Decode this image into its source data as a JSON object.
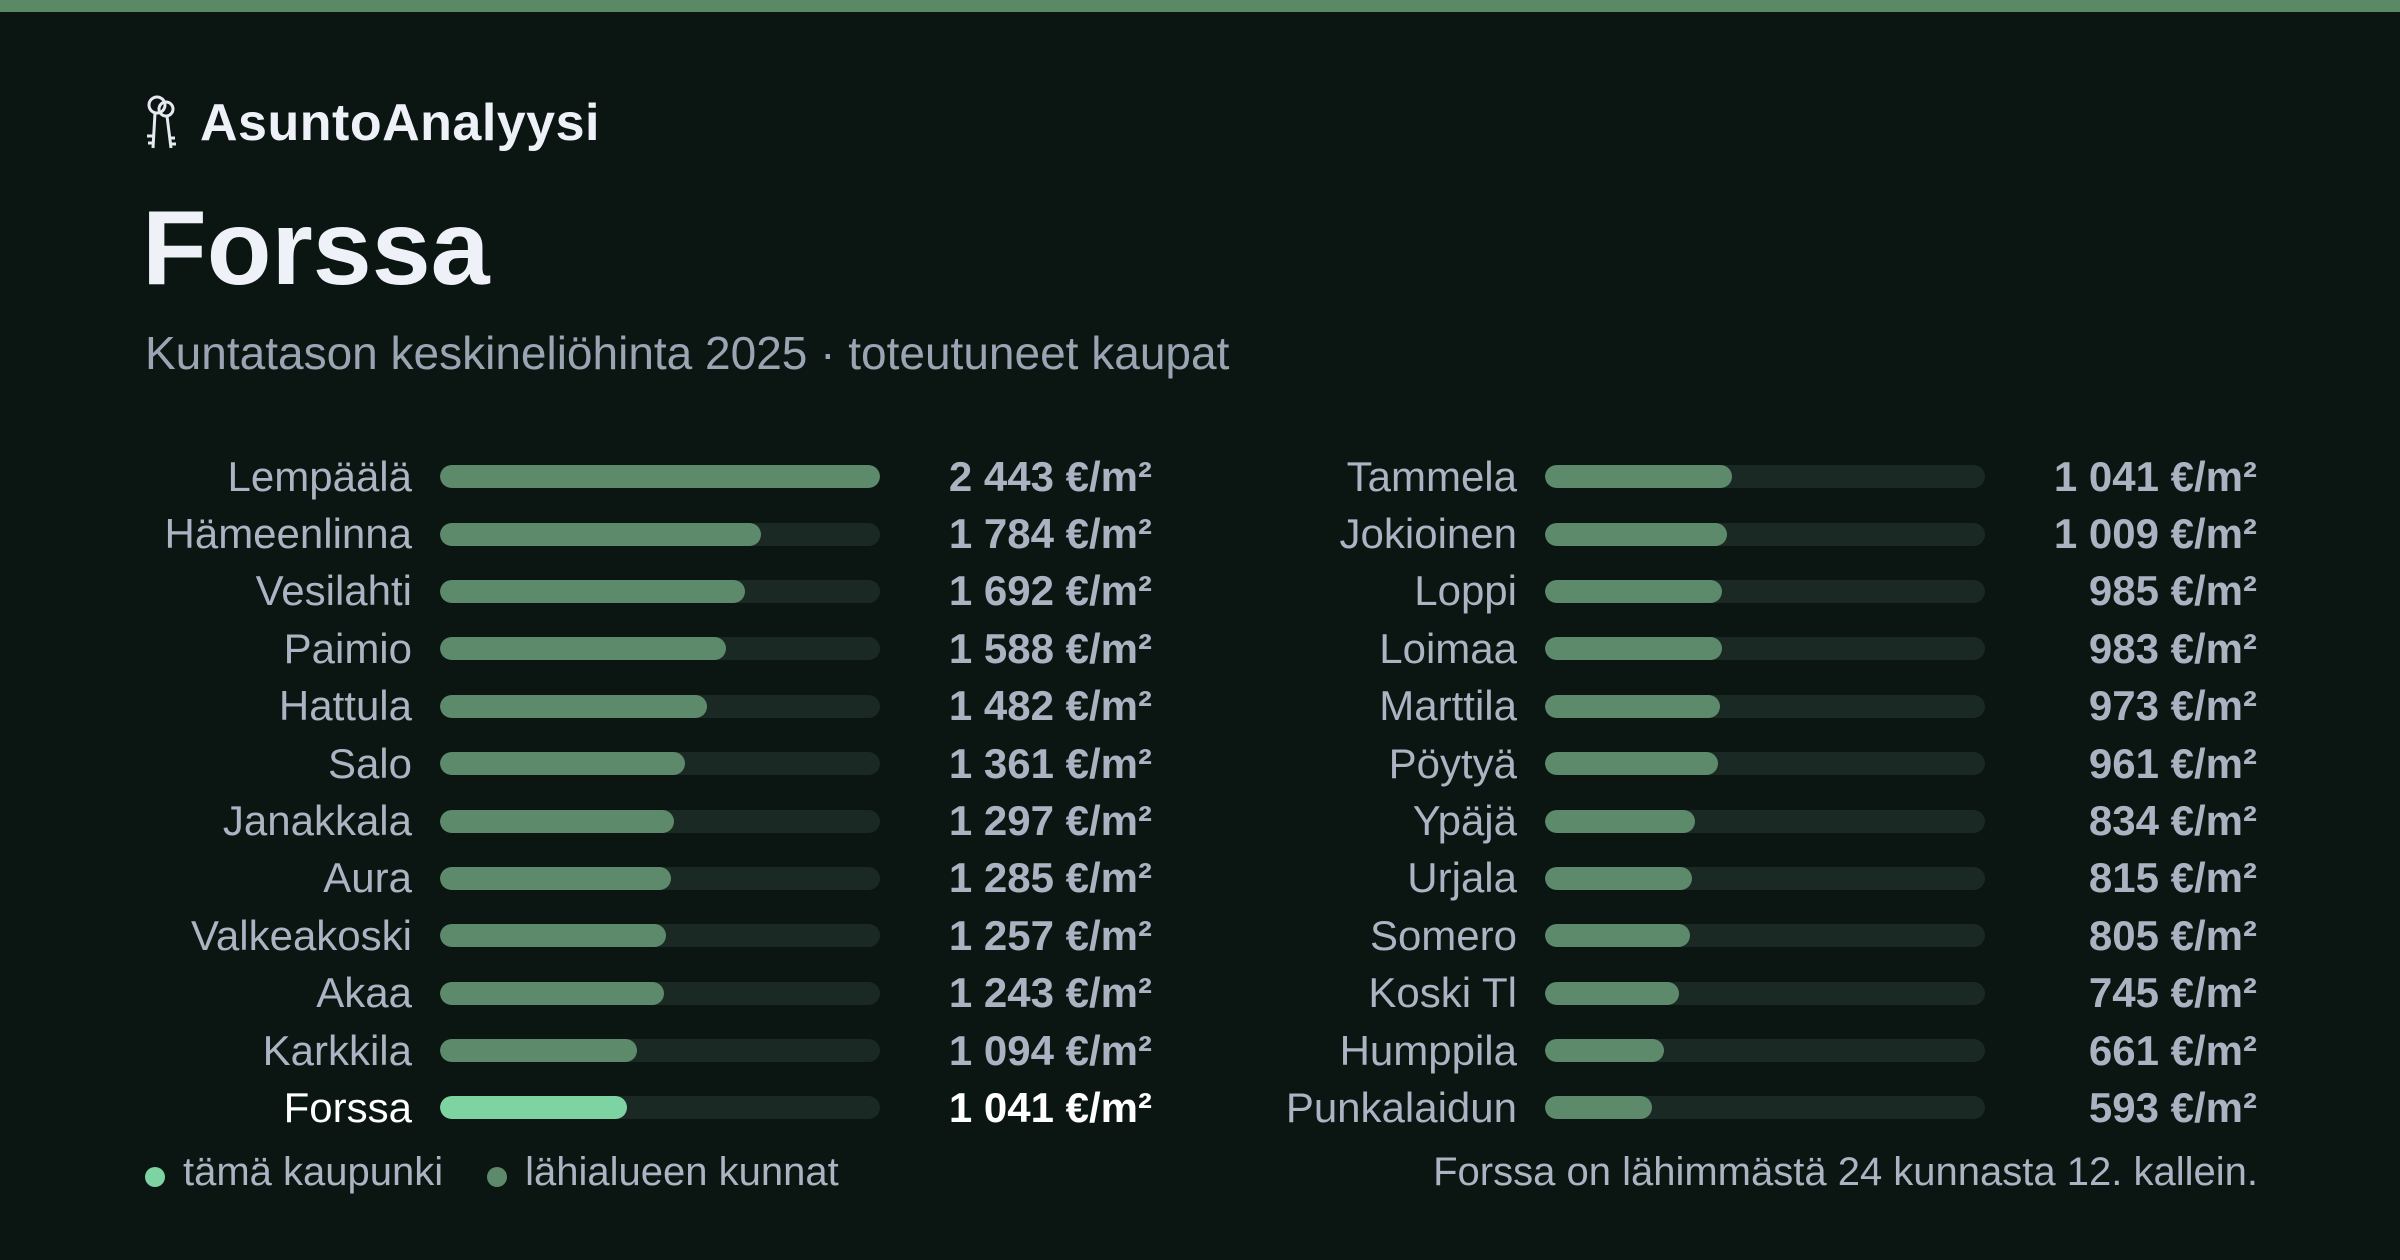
{
  "colors": {
    "top_bar": "#5a8a65",
    "highlight_bar": "#7dd3a1",
    "bar": "#5e8a6c",
    "track": "#1b2924",
    "background": "#0b1512"
  },
  "brand": {
    "icon": "keys-icon",
    "name": "AsuntoAnalyysi"
  },
  "header": {
    "title": "Forssa",
    "subtitle": "Kuntatason keskineliöhinta 2025 · toteutuneet kaupat"
  },
  "chart_data": {
    "type": "bar",
    "orientation": "horizontal",
    "max_value": 2443,
    "highlight": "Forssa",
    "categories": [
      "Lempäälä",
      "Hämeenlinna",
      "Vesilahti",
      "Paimio",
      "Hattula",
      "Salo",
      "Janakkala",
      "Aura",
      "Valkeakoski",
      "Akaa",
      "Karkkila",
      "Forssa",
      "Tammela",
      "Jokioinen",
      "Loppi",
      "Loimaa",
      "Marttila",
      "Pöytyä",
      "Ypäjä",
      "Urjala",
      "Somero",
      "Koski Tl",
      "Humppila",
      "Punkalaidun"
    ],
    "values": [
      2443,
      1784,
      1692,
      1588,
      1482,
      1361,
      1297,
      1285,
      1257,
      1243,
      1094,
      1041,
      1041,
      1009,
      985,
      983,
      973,
      961,
      834,
      815,
      805,
      745,
      661,
      593
    ],
    "value_labels": [
      "2 443 €/m²",
      "1 784 €/m²",
      "1 692 €/m²",
      "1 588 €/m²",
      "1 482 €/m²",
      "1 361 €/m²",
      "1 297 €/m²",
      "1 285 €/m²",
      "1 257 €/m²",
      "1 243 €/m²",
      "1 094 €/m²",
      "1 041 €/m²",
      "1 041 €/m²",
      "1 009 €/m²",
      "985 €/m²",
      "983 €/m²",
      "973 €/m²",
      "961 €/m²",
      "834 €/m²",
      "815 €/m²",
      "805 €/m²",
      "745 €/m²",
      "661 €/m²",
      "593 €/m²"
    ]
  },
  "legend": {
    "this_city": "tämä kaupunki",
    "nearby": "lähialueen kunnat"
  },
  "footnote": "Forssa on lähimmästä 24 kunnasta 12. kallein."
}
